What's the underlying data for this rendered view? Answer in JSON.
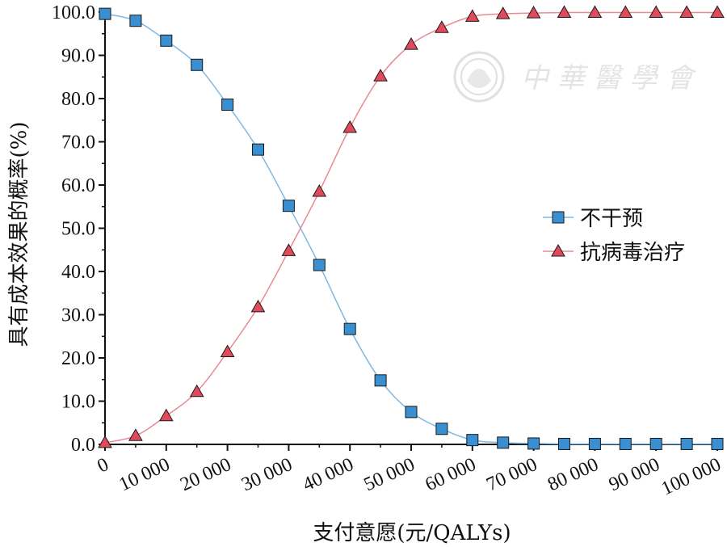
{
  "chart_data": {
    "type": "line",
    "xlabel": "支付意愿(元/QALYs)",
    "ylabel": "具有成本效果的概率(%)",
    "x": [
      0,
      5000,
      10000,
      15000,
      20000,
      25000,
      30000,
      35000,
      40000,
      45000,
      50000,
      55000,
      60000,
      65000,
      70000,
      75000,
      80000,
      85000,
      90000,
      95000,
      100000
    ],
    "xlim": [
      0,
      100000
    ],
    "ylim": [
      0,
      100
    ],
    "x_ticks": [
      0,
      10000,
      20000,
      30000,
      40000,
      50000,
      60000,
      70000,
      80000,
      90000,
      100000
    ],
    "x_tick_labels": [
      "0",
      "10 000",
      "20 000",
      "30 000",
      "40 000",
      "50 000",
      "60 000",
      "70 000",
      "80 000",
      "90 000",
      "100 000"
    ],
    "y_ticks": [
      0,
      10,
      20,
      30,
      40,
      50,
      60,
      70,
      80,
      90,
      100
    ],
    "y_tick_labels": [
      "0.0",
      "10.0",
      "20.0",
      "30.0",
      "40.0",
      "50.0",
      "60.0",
      "70.0",
      "80.0",
      "90.0",
      "100.0"
    ],
    "grid": false,
    "legend_position": "right",
    "series": [
      {
        "name": "不干预",
        "marker": "square",
        "color": "#3a8fd0",
        "line_color": "#7fb8e0",
        "values": [
          99.6,
          98.0,
          93.4,
          87.8,
          78.6,
          68.2,
          55.2,
          41.5,
          26.7,
          14.8,
          7.5,
          3.6,
          1.0,
          0.4,
          0.2,
          0.1,
          0.1,
          0.1,
          0.1,
          0.1,
          0.1
        ]
      },
      {
        "name": "抗病毒治疗",
        "marker": "triangle",
        "color": "#e04a5a",
        "line_color": "#e88a94",
        "values": [
          0.4,
          2.0,
          6.6,
          12.2,
          21.4,
          31.8,
          44.8,
          58.5,
          73.3,
          85.2,
          92.5,
          96.4,
          99.0,
          99.6,
          99.8,
          99.9,
          99.9,
          99.9,
          99.9,
          99.9,
          99.9
        ]
      }
    ]
  }
}
